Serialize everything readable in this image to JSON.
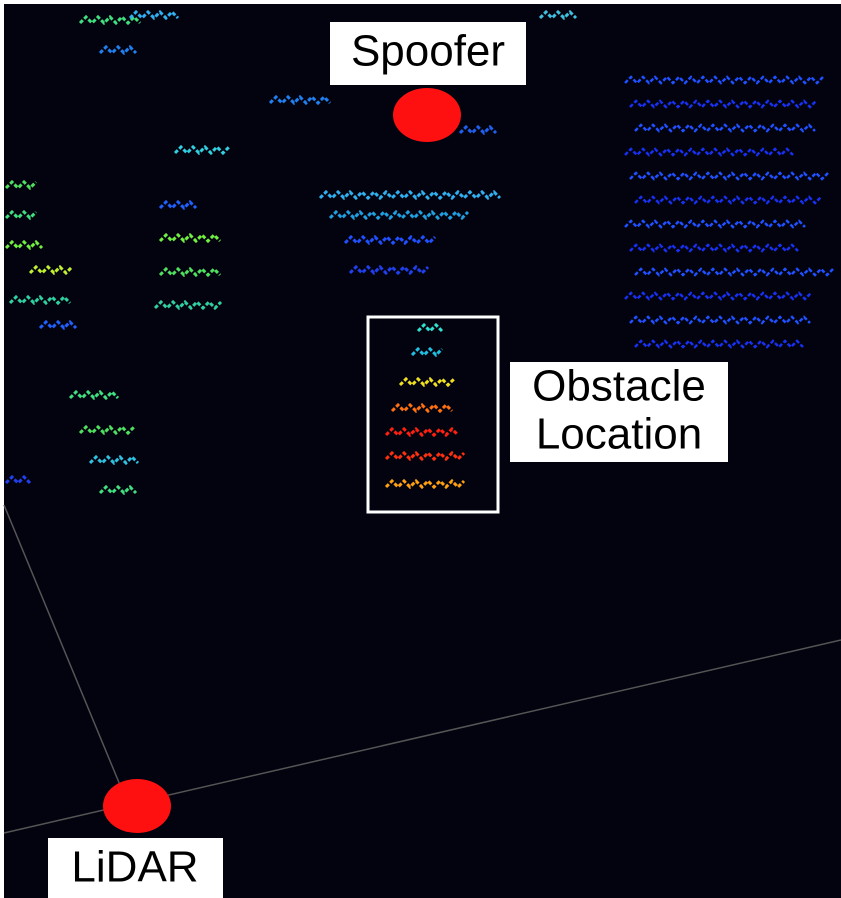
{
  "labels": {
    "spoofer": "Spoofer",
    "obstacle_line1": "Obstacle",
    "obstacle_line2": "Location",
    "lidar": "LiDAR"
  }
}
